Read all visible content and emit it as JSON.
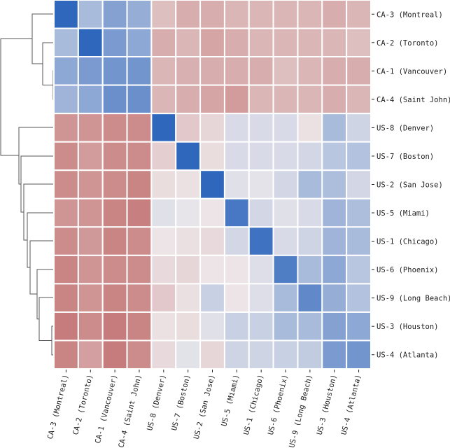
{
  "chart_data": {
    "type": "heatmap",
    "title": "",
    "xlabel": "",
    "ylabel": "",
    "colormap": {
      "low": "#b0403f",
      "mid": "#eeeaec",
      "high": "#2f67bd"
    },
    "value_range": [
      -1,
      1
    ],
    "row_dendrogram": true,
    "labels": [
      "CA-3 (Montreal)",
      "CA-2 (Toronto)",
      "CA-1 (Vancouver)",
      "CA-4 (Saint John)",
      "US-8 (Denver)",
      "US-7 (Boston)",
      "US-2 (San Jose)",
      "US-5 (Miami)",
      "US-1 (Chicago)",
      "US-6 (Phoenix)",
      "US-9 (Long Beach)",
      "US-3 (Houston)",
      "US-4 (Atlanta)"
    ],
    "values": [
      [
        1.0,
        0.3,
        0.5,
        0.4,
        -0.2,
        -0.3,
        -0.3,
        -0.25,
        -0.25,
        -0.25,
        -0.25,
        -0.3,
        -0.25
      ],
      [
        0.3,
        1.0,
        0.55,
        0.45,
        -0.3,
        -0.25,
        -0.35,
        -0.3,
        -0.25,
        -0.25,
        -0.25,
        -0.25,
        -0.2
      ],
      [
        0.45,
        0.55,
        0.6,
        0.6,
        -0.25,
        -0.28,
        -0.3,
        -0.3,
        -0.3,
        -0.2,
        -0.25,
        -0.3,
        -0.3
      ],
      [
        0.35,
        0.45,
        0.65,
        0.65,
        -0.25,
        -0.3,
        -0.35,
        -0.4,
        -0.25,
        -0.25,
        -0.25,
        -0.3,
        -0.25
      ],
      [
        -0.45,
        -0.45,
        -0.5,
        -0.5,
        1.0,
        -0.15,
        -0.08,
        0.08,
        0.08,
        0.08,
        -0.03,
        0.3,
        0.12
      ],
      [
        -0.5,
        -0.4,
        -0.5,
        -0.5,
        -0.12,
        1.0,
        -0.05,
        0.08,
        0.08,
        0.08,
        0.1,
        0.22,
        0.25
      ],
      [
        -0.5,
        -0.45,
        -0.5,
        -0.55,
        -0.05,
        -0.03,
        1.0,
        0.05,
        0.03,
        0.1,
        0.3,
        0.28,
        0.1
      ],
      [
        -0.45,
        -0.45,
        -0.55,
        -0.58,
        0.05,
        0.02,
        -0.02,
        0.85,
        0.1,
        0.05,
        0.08,
        0.35,
        0.28
      ],
      [
        -0.5,
        -0.42,
        -0.55,
        -0.5,
        -0.02,
        -0.04,
        -0.06,
        0.1,
        0.9,
        0.08,
        0.12,
        0.35,
        0.3
      ],
      [
        -0.55,
        -0.45,
        -0.5,
        -0.5,
        -0.06,
        -0.08,
        -0.02,
        -0.02,
        0.06,
        0.8,
        0.3,
        0.45,
        0.22
      ],
      [
        -0.55,
        -0.45,
        -0.55,
        -0.5,
        -0.15,
        -0.04,
        0.15,
        -0.02,
        0.06,
        0.3,
        0.7,
        0.4,
        0.25
      ],
      [
        -0.6,
        -0.5,
        -0.6,
        -0.55,
        -0.03,
        -0.05,
        0.05,
        0.15,
        0.15,
        0.3,
        0.3,
        0.5,
        0.45
      ],
      [
        -0.55,
        -0.38,
        -0.6,
        -0.5,
        -0.06,
        0.04,
        -0.08,
        0.12,
        0.12,
        0.15,
        0.18,
        0.55,
        0.6
      ]
    ]
  }
}
